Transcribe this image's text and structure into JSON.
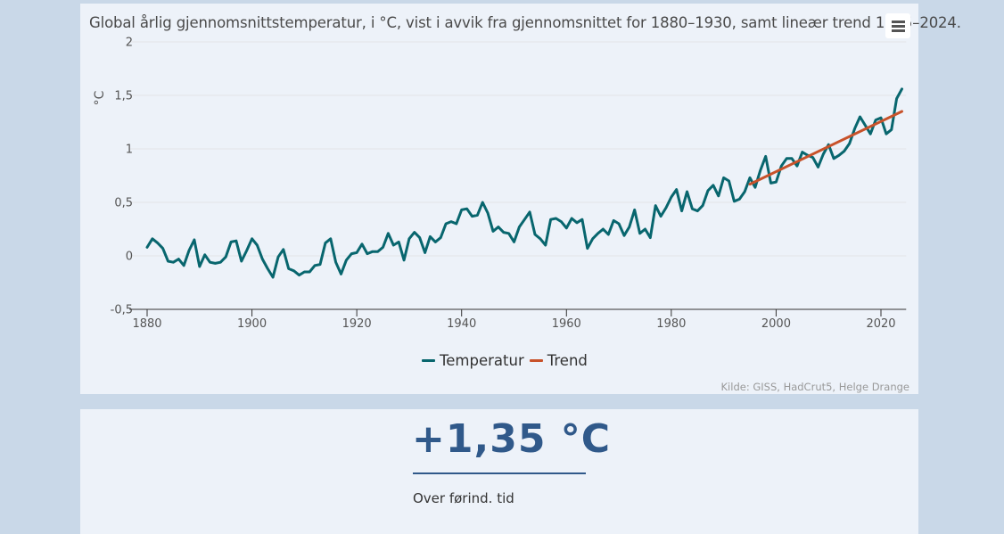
{
  "chart_panel": {
    "menu_icon": "hamburger-menu-icon",
    "credits": "Kilde: GISS, HadCrut5, Helge Drange"
  },
  "stat_panel": {
    "value": "+1,35 °C",
    "caption": "Over førind. tid",
    "color": "#30598a"
  },
  "chart_data": {
    "type": "line",
    "title": "Global årlig gjennomsnittstemperatur, i °C, vist i avvik fra gjennomsnittet for 1880–1930, samt lineær trend 1995–2024.",
    "xlabel": "",
    "ylabel": "°C",
    "xlim": [
      1878,
      2026
    ],
    "ylim": [
      -0.5,
      2
    ],
    "x_ticks": [
      1880,
      1900,
      1920,
      1940,
      1960,
      1980,
      2000,
      2020
    ],
    "x_tick_labels": [
      "1880",
      "1900",
      "1920",
      "1940",
      "1960",
      "1980",
      "2000",
      "2020"
    ],
    "y_ticks": [
      -0.5,
      0,
      0.5,
      1,
      1.5,
      2
    ],
    "y_tick_labels": [
      "-0,5",
      "0",
      "0,5",
      "1",
      "1,5",
      "2"
    ],
    "grid": true,
    "legend_position": "bottom-center",
    "series": [
      {
        "name": "Temperatur",
        "color": "#08666e",
        "x_start": 1880,
        "x_step": 1,
        "values": [
          0.08,
          0.16,
          0.12,
          0.07,
          -0.05,
          -0.06,
          -0.03,
          -0.09,
          0.05,
          0.15,
          -0.1,
          0.01,
          -0.06,
          -0.07,
          -0.06,
          -0.01,
          0.13,
          0.14,
          -0.05,
          0.05,
          0.16,
          0.1,
          -0.03,
          -0.12,
          -0.2,
          -0.01,
          0.06,
          -0.12,
          -0.14,
          -0.18,
          -0.15,
          -0.15,
          -0.09,
          -0.08,
          0.12,
          0.16,
          -0.06,
          -0.17,
          -0.04,
          0.02,
          0.03,
          0.11,
          0.02,
          0.04,
          0.04,
          0.08,
          0.21,
          0.1,
          0.13,
          -0.04,
          0.16,
          0.22,
          0.17,
          0.03,
          0.18,
          0.13,
          0.17,
          0.3,
          0.32,
          0.3,
          0.43,
          0.44,
          0.37,
          0.38,
          0.5,
          0.4,
          0.23,
          0.27,
          0.22,
          0.21,
          0.13,
          0.27,
          0.34,
          0.41,
          0.2,
          0.16,
          0.1,
          0.34,
          0.35,
          0.32,
          0.26,
          0.35,
          0.31,
          0.34,
          0.07,
          0.16,
          0.21,
          0.25,
          0.2,
          0.33,
          0.3,
          0.19,
          0.27,
          0.43,
          0.21,
          0.25,
          0.17,
          0.47,
          0.37,
          0.45,
          0.55,
          0.62,
          0.42,
          0.6,
          0.44,
          0.42,
          0.47,
          0.61,
          0.66,
          0.56,
          0.73,
          0.7,
          0.51,
          0.53,
          0.6,
          0.73,
          0.64,
          0.8,
          0.93,
          0.68,
          0.69,
          0.84,
          0.91,
          0.91,
          0.84,
          0.97,
          0.94,
          0.92,
          0.83,
          0.95,
          1.04,
          0.91,
          0.94,
          0.98,
          1.05,
          1.19,
          1.3,
          1.22,
          1.14,
          1.27,
          1.29,
          1.14,
          1.18,
          1.47,
          1.56
        ]
      },
      {
        "name": "Trend",
        "color": "#c8522a",
        "x": [
          1995,
          2024
        ],
        "values": [
          0.67,
          1.35
        ]
      }
    ]
  }
}
